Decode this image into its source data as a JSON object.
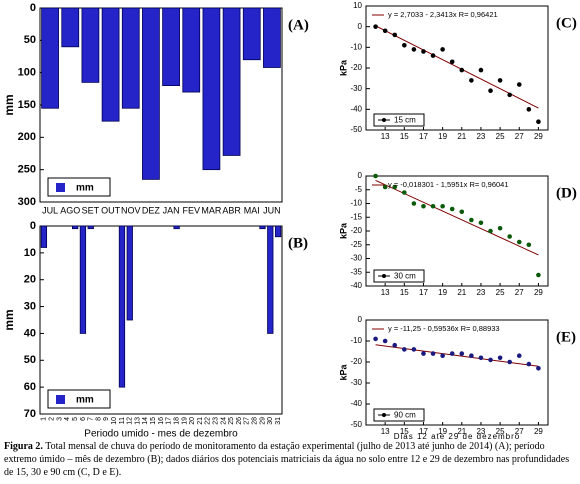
{
  "chart_data": [
    {
      "type": "bar",
      "panel_label": "(A)",
      "ylabel": "mm",
      "legend": "lower left",
      "legend_label": "mm",
      "y_inverted": true,
      "color": "#2424c8",
      "categories": [
        "JUL",
        "AGO",
        "SET",
        "OUT",
        "NOV",
        "DEZ",
        "JAN",
        "FEV",
        "MAR",
        "ABR",
        "MAI",
        "JUN"
      ],
      "values": [
        155,
        60,
        115,
        175,
        155,
        265,
        120,
        130,
        250,
        228,
        80,
        92
      ],
      "ylim": [
        0,
        300
      ],
      "yticks": [
        0,
        50,
        100,
        150,
        200,
        250,
        300
      ]
    },
    {
      "type": "bar",
      "panel_label": "(B)",
      "ylabel": "mm",
      "xlabel": "Periodo umido - mes de dezembro",
      "legend": "lower left",
      "legend_label": "mm",
      "y_inverted": true,
      "color": "#2424c8",
      "categories": [
        "1",
        "2",
        "3",
        "4",
        "5",
        "6",
        "7",
        "8",
        "9",
        "10",
        "11",
        "12",
        "13",
        "14",
        "15",
        "16",
        "17",
        "18",
        "19",
        "20",
        "21",
        "22",
        "23",
        "24",
        "25",
        "26",
        "27",
        "28",
        "29",
        "30",
        "31"
      ],
      "values": [
        8,
        0,
        0,
        0,
        1,
        40,
        1,
        0,
        0,
        0,
        60,
        35,
        0,
        0,
        0,
        0,
        0,
        1,
        0,
        0,
        0,
        0,
        0,
        0,
        0,
        0,
        0,
        0,
        1,
        40,
        4
      ],
      "ylim": [
        0,
        70
      ],
      "yticks": [
        0,
        10,
        20,
        30,
        40,
        50,
        60,
        70
      ]
    },
    {
      "type": "scatter",
      "panel_label": "(C)",
      "ylabel": "kPa",
      "legend": "lower left",
      "legend_label": "15 cm",
      "equation": "y = 2,7033 - 2,3413x   R= 0,96421",
      "x": [
        12,
        13,
        14,
        15,
        16,
        17,
        18,
        19,
        20,
        21,
        22,
        23,
        24,
        25,
        26,
        27,
        28,
        29
      ],
      "values": [
        0,
        -2,
        -4,
        -9,
        -11,
        -12,
        -14,
        -11,
        -17,
        -21,
        -26,
        -21,
        -31,
        -26,
        -33,
        -28,
        -40,
        -46
      ],
      "trend": {
        "x": [
          12,
          29
        ],
        "y": [
          0.4,
          -39.4
        ]
      },
      "xlim": [
        11,
        30
      ],
      "xticks": [
        13,
        15,
        17,
        19,
        21,
        23,
        25,
        27,
        29
      ],
      "ylim": [
        -50,
        10
      ],
      "yticks": [
        -50,
        -40,
        -30,
        -20,
        -10,
        0,
        10
      ]
    },
    {
      "type": "scatter",
      "panel_label": "(D)",
      "ylabel": "kPa",
      "legend": "lower left",
      "legend_label": "30 cm",
      "equation": "y = -0,018301 - 1,5951x   R= 0,96041",
      "x": [
        12,
        13,
        14,
        15,
        16,
        17,
        18,
        19,
        20,
        21,
        22,
        23,
        24,
        25,
        26,
        27,
        28,
        29
      ],
      "values": [
        0,
        -4,
        -4,
        -6,
        -10,
        -11,
        -11,
        -11,
        -12,
        -13,
        -16,
        -17,
        -20,
        -19,
        -22,
        -24,
        -25,
        -36
      ],
      "trend": {
        "x": [
          12,
          29
        ],
        "y": [
          -1.6,
          -28.7
        ]
      },
      "xlim": [
        11,
        30
      ],
      "xticks": [
        13,
        15,
        17,
        19,
        21,
        23,
        25,
        27,
        29
      ],
      "ylim": [
        -40,
        0
      ],
      "yticks": [
        -40,
        -35,
        -30,
        -25,
        -20,
        -15,
        -10,
        -5,
        0
      ]
    },
    {
      "type": "scatter",
      "panel_label": "(E)",
      "ylabel": "kPa",
      "xlabel": "Dias 12 ate 29 de dezembro",
      "legend": "lower left",
      "legend_label": "90 cm",
      "equation": "y = -11,25 - 0,59536x   R= 0,88933",
      "x": [
        12,
        13,
        14,
        15,
        16,
        17,
        18,
        19,
        20,
        21,
        22,
        23,
        24,
        25,
        26,
        27,
        28,
        29
      ],
      "values": [
        -9,
        -10,
        -12,
        -14,
        -14,
        -16,
        -16,
        -17,
        -16,
        -16,
        -17,
        -18,
        -19,
        -18,
        -20,
        -17,
        -21,
        -23
      ],
      "trend": {
        "x": [
          12,
          29
        ],
        "y": [
          -11.8,
          -22.0
        ]
      },
      "xlim": [
        11,
        30
      ],
      "xticks": [
        13,
        15,
        17,
        19,
        21,
        23,
        25,
        27,
        29
      ],
      "ylim": [
        -50,
        0
      ],
      "yticks": [
        -50,
        -40,
        -30,
        -20,
        -10,
        0
      ]
    }
  ],
  "caption": {
    "label": "Figura 2.",
    "text": "Total mensal de chuva do período de monitoramento da estação experimental (julho de 2013 até junho de 2014) (A); período extremo úmido – mês de dezembro (B); dados diários dos potenciais matriciais da água no solo entre 12 e 29 de dezembro nas profundidades de 15, 30 e 90 cm (C, D e E)."
  }
}
